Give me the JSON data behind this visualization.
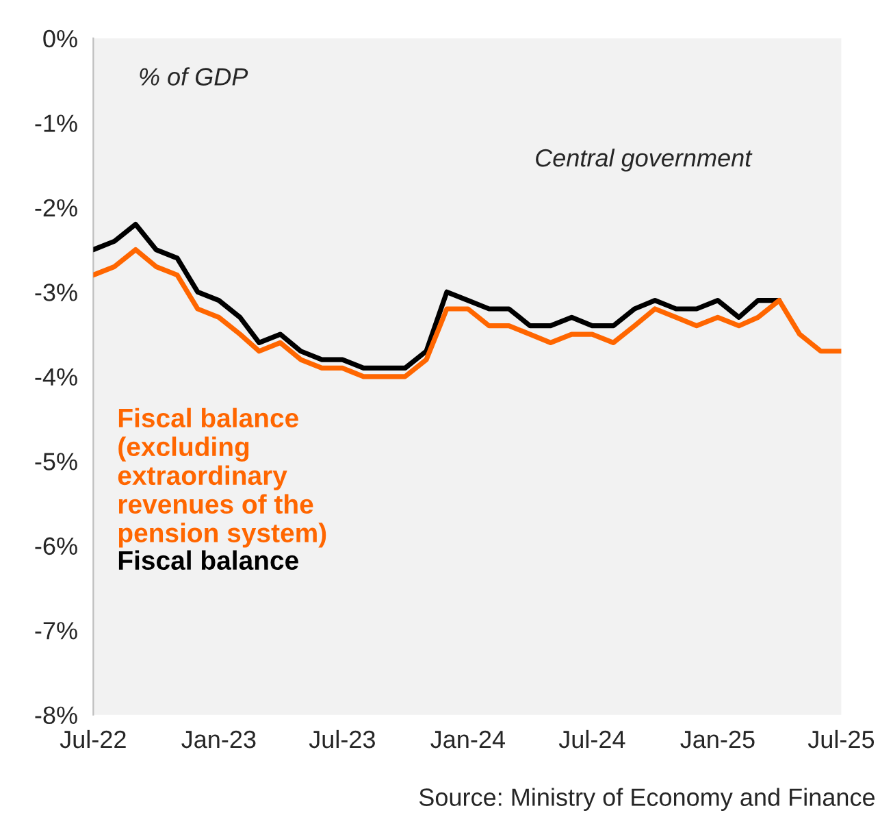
{
  "chart_data": {
    "type": "line",
    "x": [
      "2022-07",
      "2022-08",
      "2022-09",
      "2022-10",
      "2022-11",
      "2022-12",
      "2023-01",
      "2023-02",
      "2023-03",
      "2023-04",
      "2023-05",
      "2023-06",
      "2023-07",
      "2023-08",
      "2023-09",
      "2023-10",
      "2023-11",
      "2023-12",
      "2024-01",
      "2024-02",
      "2024-03",
      "2024-04",
      "2024-05",
      "2024-06",
      "2024-07",
      "2024-08",
      "2024-09",
      "2024-10",
      "2024-11",
      "2024-12",
      "2025-01",
      "2025-02",
      "2025-03",
      "2025-04",
      "2025-05",
      "2025-06",
      "2025-07"
    ],
    "series": [
      {
        "name": "Fiscal balance (excluding extraordinary revenues of the pension system)",
        "color": "#ff6600",
        "values": [
          -2.8,
          -2.7,
          -2.5,
          -2.7,
          -2.8,
          -3.2,
          -3.3,
          -3.5,
          -3.7,
          -3.6,
          -3.8,
          -3.9,
          -3.9,
          -4.0,
          -4.0,
          -4.0,
          -3.8,
          -3.2,
          -3.2,
          -3.4,
          -3.4,
          -3.5,
          -3.6,
          -3.5,
          -3.5,
          -3.6,
          -3.4,
          -3.2,
          -3.3,
          -3.4,
          -3.3,
          -3.4,
          -3.3,
          -3.1,
          -3.5,
          -3.7,
          -3.7
        ]
      },
      {
        "name": "Fiscal balance",
        "color": "#000000",
        "values": [
          -2.5,
          -2.4,
          -2.2,
          -2.5,
          -2.6,
          -3.0,
          -3.1,
          -3.3,
          -3.6,
          -3.5,
          -3.7,
          -3.8,
          -3.8,
          -3.9,
          -3.9,
          -3.9,
          -3.7,
          -3.0,
          -3.1,
          -3.2,
          -3.2,
          -3.4,
          -3.4,
          -3.3,
          -3.4,
          -3.4,
          -3.2,
          -3.1,
          -3.2,
          -3.2,
          -3.1,
          -3.3,
          -3.1,
          -3.1,
          null,
          null,
          null
        ]
      }
    ],
    "xlim": [
      "2022-07",
      "2025-07"
    ],
    "xticks": [
      {
        "value": "2022-07",
        "label": "Jul-22"
      },
      {
        "value": "2023-01",
        "label": "Jan-23"
      },
      {
        "value": "2023-07",
        "label": "Jul-23"
      },
      {
        "value": "2024-01",
        "label": "Jan-24"
      },
      {
        "value": "2024-07",
        "label": "Jul-24"
      },
      {
        "value": "2025-01",
        "label": "Jan-25"
      },
      {
        "value": "2025-07",
        "label": "Jul-25"
      }
    ],
    "ylim": [
      -8,
      0
    ],
    "yticks": [
      {
        "value": 0,
        "label": "0%"
      },
      {
        "value": -1,
        "label": "-1%"
      },
      {
        "value": -2,
        "label": "-2%"
      },
      {
        "value": -3,
        "label": "-3%"
      },
      {
        "value": -4,
        "label": "-4%"
      },
      {
        "value": -5,
        "label": "-5%"
      },
      {
        "value": -6,
        "label": "-6%"
      },
      {
        "value": -7,
        "label": "-7%"
      },
      {
        "value": -8,
        "label": "-8%"
      }
    ],
    "grid": false,
    "legend": "left",
    "marker": "none",
    "line_style": "solid",
    "annotations": [
      "% of GDP",
      "Central government",
      "Source: Ministry of Economy and Finance"
    ]
  }
}
